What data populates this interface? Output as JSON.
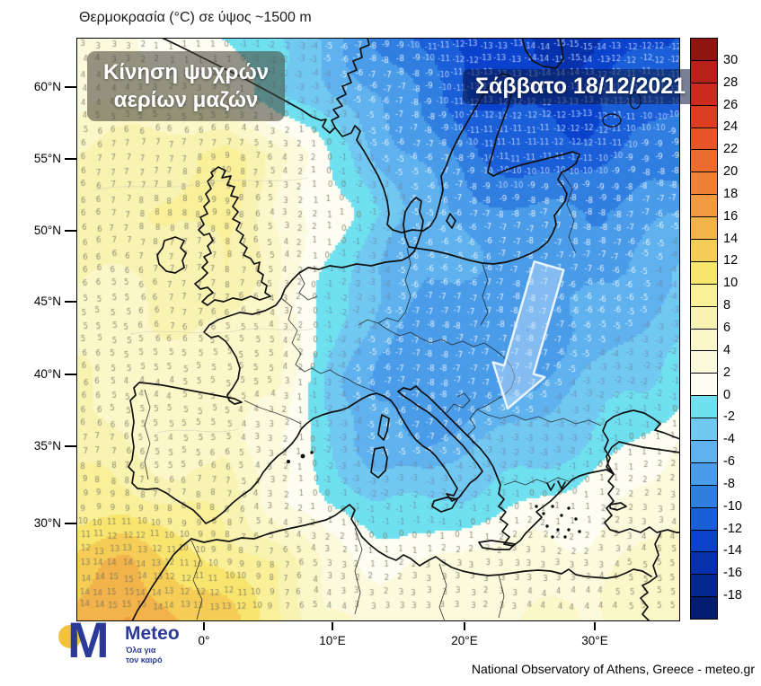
{
  "title": "Θερμοκρασία (°C) σε ύψος ~1500 m",
  "annotation_box": {
    "line1": "Κίνηση ψυχρών",
    "line2": "αερίων μαζών"
  },
  "date_box": {
    "text": "Σάββατο 18/12/2021"
  },
  "axes": {
    "lat_tick_labels": [
      "60°N",
      "55°N",
      "50°N",
      "45°N",
      "40°N",
      "35°N",
      "30°N"
    ],
    "lon_tick_labels": [
      "0°",
      "10°E",
      "20°E",
      "30°E"
    ]
  },
  "colorbar": {
    "tick_labels": [
      30,
      28,
      26,
      24,
      22,
      20,
      18,
      16,
      14,
      12,
      10,
      8,
      6,
      4,
      2,
      0,
      -2,
      -4,
      -6,
      -8,
      -10,
      -12,
      -14,
      -16,
      -18
    ],
    "colors": [
      "#8f1510",
      "#b7211a",
      "#cc2a1e",
      "#dd3b22",
      "#e65427",
      "#ec6b2e",
      "#f08036",
      "#f29a40",
      "#f2b34a",
      "#f5cd56",
      "#f8e56e",
      "#f9f099",
      "#f9f3b2",
      "#fbf7c8",
      "#fcfadd",
      "#fdfdf2",
      "#6fe0ef",
      "#71c8f1",
      "#5fb2ed",
      "#4a9ce8",
      "#2f7ee0",
      "#1a5ed8",
      "#0a42cc",
      "#0531ad",
      "#03278e",
      "#021c6e"
    ]
  },
  "chart_data": {
    "type": "heatmap",
    "title": "Θερμοκρασία (°C) σε ύψος ~1500 m",
    "subtitle": "Σάββατο 18/12/2021",
    "legend_position": "right",
    "scale_ticks": [
      30,
      28,
      26,
      24,
      22,
      20,
      18,
      16,
      14,
      12,
      10,
      8,
      6,
      4,
      2,
      0,
      -2,
      -4,
      -6,
      -8,
      -10,
      -12,
      -14,
      -16,
      -18
    ],
    "lat_range": [
      "30°N",
      "60°N"
    ],
    "lon_range": [
      "~10°W",
      "~38°E"
    ],
    "grid_rows": 11,
    "grid_cols": 13,
    "grid_note": "Temperature (°C) at ~1500 m sampled on a coarse grid over the map, west→east per row, north→south rows",
    "values": [
      [
        3,
        2,
        1,
        0,
        -2,
        -5,
        -8,
        -11,
        -13,
        -14,
        -15,
        -13,
        -12
      ],
      [
        4,
        4,
        3,
        2,
        -1,
        -4,
        -6,
        -9,
        -12,
        -13,
        -13,
        -11,
        -10
      ],
      [
        6,
        7,
        8,
        9,
        5,
        0,
        -4,
        -7,
        -10,
        -11,
        -11,
        -10,
        -9
      ],
      [
        7,
        7,
        8,
        9,
        4,
        1,
        -2,
        -5,
        -7,
        -8,
        -8,
        -7,
        -6
      ],
      [
        6,
        6,
        7,
        8,
        4,
        0,
        -4,
        -6,
        -6,
        -7,
        -7,
        -6,
        -4
      ],
      [
        5,
        5,
        6,
        6,
        4,
        -1,
        -5,
        -7,
        -8,
        -8,
        -6,
        -4,
        -3
      ],
      [
        6,
        5,
        4,
        5,
        4,
        -2,
        -7,
        -8,
        -7,
        -6,
        -4,
        -2,
        -1
      ],
      [
        7,
        6,
        4,
        6,
        2,
        -2,
        -5,
        -6,
        -4,
        -3,
        -2,
        0,
        2
      ],
      [
        9,
        9,
        8,
        7,
        3,
        0,
        -2,
        -2,
        -1,
        0,
        1,
        2,
        4
      ],
      [
        13,
        14,
        12,
        9,
        8,
        3,
        2,
        2,
        3,
        3,
        3,
        4,
        5
      ],
      [
        15,
        16,
        14,
        13,
        9,
        4,
        3,
        3,
        3,
        4,
        4,
        5,
        6
      ]
    ],
    "annotations": [
      "Κίνηση ψυχρών αερίων μαζών"
    ]
  },
  "footer": {
    "logo_letter": "M",
    "brand": "Meteo",
    "tagline_line1": "Όλα για",
    "tagline_line2": "τον καιρό",
    "attribution": "National Observatory of Athens, Greece - meteo.gr"
  }
}
